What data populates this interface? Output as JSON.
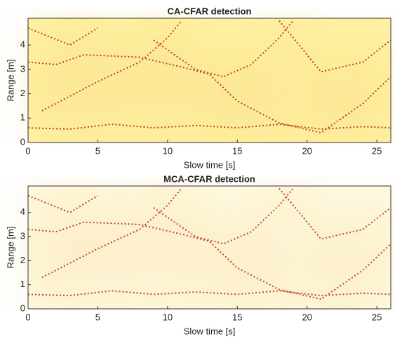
{
  "chart_data": [
    {
      "type": "heatmap",
      "title": "CA-CFAR detection",
      "xlabel": "Slow time [s]",
      "ylabel": "Range [m]",
      "xlim": [
        0,
        26
      ],
      "xticks": [
        0,
        5,
        10,
        15,
        20,
        25
      ],
      "ylim": [
        0,
        5.1
      ],
      "yticks": [
        0,
        1,
        2,
        3,
        4
      ]
    },
    {
      "type": "heatmap",
      "title": "MCA-CFAR detection",
      "xlabel": "Slow time [s]",
      "ylabel": "Range [m]",
      "xlim": [
        0,
        26
      ],
      "xticks": [
        0,
        5,
        10,
        15,
        20,
        25
      ],
      "ylim": [
        0,
        5.1
      ],
      "yticks": [
        0,
        1,
        2,
        3,
        4
      ]
    }
  ]
}
